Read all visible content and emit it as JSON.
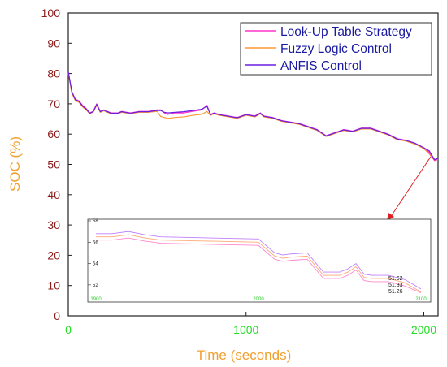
{
  "chart_data": {
    "type": "line",
    "xlabel": "Time (seconds)",
    "ylabel": "SOC (%)",
    "xlim": [
      0,
      2080
    ],
    "ylim": [
      0,
      100
    ],
    "x_ticks": [
      "0",
      "1000",
      "2000"
    ],
    "y_ticks": [
      "0",
      "10",
      "20",
      "30",
      "40",
      "50",
      "60",
      "70",
      "80",
      "90",
      "100"
    ],
    "legend_position": "top-right",
    "series": [
      {
        "name": "Look-Up Table Strategy",
        "color": "#ff33cc",
        "x": [
          0,
          20,
          40,
          60,
          80,
          100,
          120,
          140,
          160,
          180,
          200,
          240,
          280,
          300,
          350,
          400,
          450,
          500,
          520,
          540,
          560,
          600,
          650,
          700,
          750,
          780,
          800,
          820,
          850,
          900,
          950,
          1000,
          1050,
          1080,
          1100,
          1150,
          1200,
          1250,
          1300,
          1350,
          1400,
          1450,
          1500,
          1550,
          1600,
          1650,
          1700,
          1750,
          1800,
          1850,
          1900,
          1950,
          2000,
          2030,
          2060,
          2080
        ],
        "y": [
          80.5,
          74,
          71.5,
          71,
          69.5,
          68.5,
          67,
          67.5,
          70,
          67.5,
          68,
          67,
          67,
          67.5,
          67,
          67.5,
          67.5,
          68,
          68,
          67,
          66.5,
          67,
          67,
          67.5,
          68,
          69.5,
          66.5,
          67,
          66.5,
          66,
          65.5,
          66.5,
          66,
          67,
          66,
          65.5,
          64.5,
          64,
          63.5,
          62.5,
          61.5,
          59.5,
          60.5,
          61.5,
          61,
          62,
          62,
          61,
          60,
          58.5,
          58,
          57,
          55.5,
          54,
          51.3,
          51.7
        ]
      },
      {
        "name": "Fuzzy Logic Control",
        "color": "#ff9933",
        "x": [
          0,
          20,
          40,
          60,
          80,
          100,
          120,
          140,
          160,
          180,
          200,
          240,
          280,
          300,
          350,
          400,
          450,
          500,
          520,
          540,
          560,
          600,
          650,
          700,
          750,
          780,
          800,
          820,
          850,
          900,
          950,
          1000,
          1050,
          1080,
          1100,
          1150,
          1200,
          1250,
          1300,
          1350,
          1400,
          1450,
          1500,
          1550,
          1600,
          1650,
          1700,
          1750,
          1800,
          1850,
          1900,
          1950,
          2000,
          2030,
          2060,
          2080
        ],
        "y": [
          80.3,
          73.5,
          71,
          70.5,
          69,
          68,
          66.8,
          67.2,
          69.5,
          67.2,
          67.7,
          66.7,
          66.7,
          67.2,
          66.7,
          67.2,
          67.2,
          67.5,
          65.8,
          65.5,
          65.2,
          65.5,
          65.7,
          66.2,
          66.5,
          67.5,
          66.2,
          66.7,
          66.2,
          65.7,
          65.2,
          66.2,
          65.7,
          66.7,
          65.7,
          65.2,
          64.2,
          63.7,
          63.2,
          62.2,
          61.2,
          59.2,
          60.2,
          61.2,
          60.7,
          61.7,
          61.7,
          60.7,
          59.7,
          58.2,
          57.7,
          56.7,
          55.2,
          53.5,
          51.3,
          51.6
        ]
      },
      {
        "name": "ANFIS Control",
        "color": "#6a1fe0",
        "x": [
          0,
          20,
          40,
          60,
          80,
          100,
          120,
          140,
          160,
          180,
          200,
          240,
          280,
          300,
          350,
          400,
          450,
          500,
          520,
          540,
          560,
          600,
          650,
          700,
          750,
          780,
          800,
          820,
          850,
          900,
          950,
          1000,
          1050,
          1080,
          1100,
          1150,
          1200,
          1250,
          1300,
          1350,
          1400,
          1450,
          1500,
          1550,
          1600,
          1650,
          1700,
          1750,
          1800,
          1850,
          1900,
          1950,
          2000,
          2030,
          2060,
          2080
        ],
        "y": [
          80.6,
          74,
          71.3,
          70.8,
          69.3,
          68.3,
          66.9,
          67.4,
          69.8,
          67.4,
          67.9,
          66.9,
          66.9,
          67.4,
          66.9,
          67.4,
          67.4,
          67.8,
          67.8,
          67.2,
          67,
          67.2,
          67.4,
          67.8,
          68.2,
          69.2,
          66.4,
          66.9,
          66.4,
          65.9,
          65.4,
          66.4,
          65.9,
          66.9,
          65.9,
          65.4,
          64.4,
          63.9,
          63.4,
          62.4,
          61.4,
          59.4,
          60.4,
          61.4,
          60.9,
          61.9,
          61.9,
          60.9,
          59.9,
          58.4,
          57.9,
          57,
          55.5,
          54.5,
          51.6,
          52
        ]
      }
    ],
    "inset": {
      "xlim": [
        1900,
        2100
      ],
      "ylim": [
        51,
        58
      ],
      "x_ticks": [
        "1900",
        "2000",
        "2100"
      ],
      "y_ticks": [
        "52",
        "54",
        "56",
        "58"
      ],
      "final_values": [
        "51.62",
        "51.33",
        "51.26"
      ],
      "series": [
        {
          "color": "#c080ff",
          "x": [
            1900,
            1910,
            1920,
            1930,
            1940,
            1970,
            2000,
            2010,
            2015,
            2020,
            2030,
            2040,
            2050,
            2055,
            2060,
            2065,
            2070,
            2080,
            2090,
            2100
          ],
          "y": [
            56.8,
            56.8,
            57.0,
            56.7,
            56.5,
            56.4,
            56.3,
            55.0,
            54.8,
            54.9,
            55.0,
            53.2,
            53.2,
            53.5,
            54.0,
            53.0,
            52.9,
            52.9,
            52.5,
            51.62
          ]
        },
        {
          "color": "#ffaa77",
          "x": [
            1900,
            1910,
            1920,
            1930,
            1940,
            1970,
            2000,
            2010,
            2015,
            2020,
            2030,
            2040,
            2050,
            2055,
            2060,
            2065,
            2070,
            2080,
            2090,
            2100
          ],
          "y": [
            56.5,
            56.5,
            56.7,
            56.4,
            56.2,
            56.1,
            56.0,
            54.7,
            54.5,
            54.6,
            54.7,
            52.9,
            52.9,
            53.2,
            53.7,
            52.7,
            52.6,
            52.6,
            52.2,
            51.33
          ]
        },
        {
          "color": "#ff88cc",
          "x": [
            1900,
            1910,
            1920,
            1930,
            1940,
            1970,
            2000,
            2010,
            2015,
            2020,
            2030,
            2040,
            2050,
            2055,
            2060,
            2065,
            2070,
            2080,
            2090,
            2100
          ],
          "y": [
            56.2,
            56.2,
            56.4,
            56.1,
            55.9,
            55.8,
            55.7,
            54.4,
            54.2,
            54.3,
            54.4,
            52.6,
            52.6,
            52.9,
            53.4,
            52.4,
            52.3,
            52.3,
            51.9,
            51.26
          ]
        }
      ]
    }
  }
}
